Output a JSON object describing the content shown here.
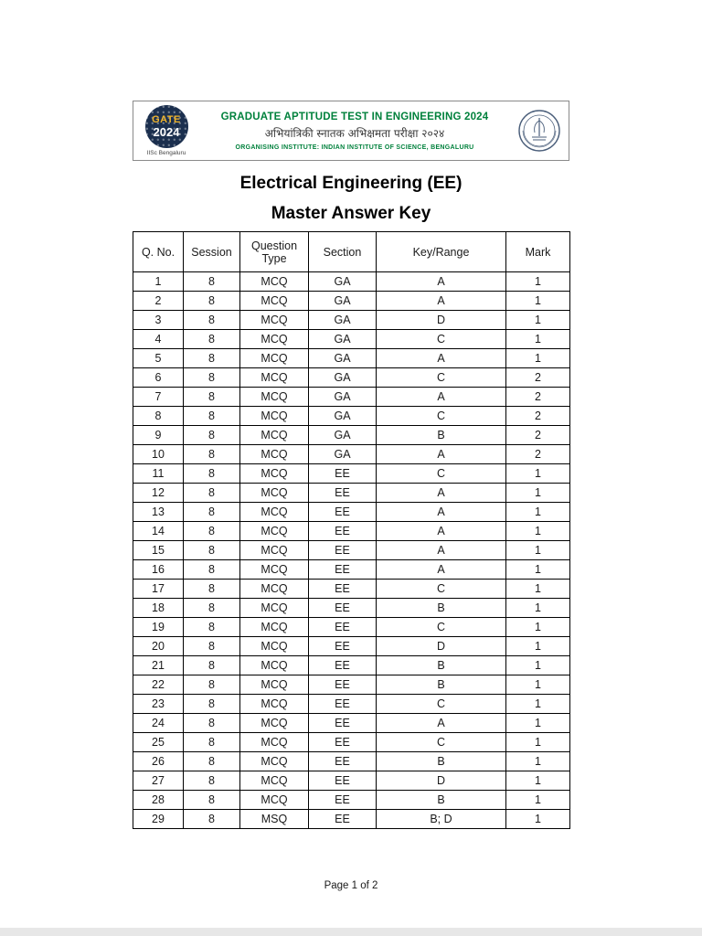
{
  "header": {
    "logo": {
      "gate": "GATE",
      "year": "2024",
      "sub": "IISc Bengaluru"
    },
    "line1": "GRADUATE APTITUDE TEST IN ENGINEERING 2024",
    "line2": "अभियांत्रिकी स्नातक अभिक्षमता परीक्षा २०२४",
    "line3": "ORGANISING INSTITUTE: INDIAN INSTITUTE OF SCIENCE, BENGALURU"
  },
  "document": {
    "title_line1": "Electrical Engineering (EE)",
    "title_line2": "Master Answer Key",
    "footer": "Page 1 of 2"
  },
  "colors": {
    "header_green": "#00813C",
    "logo_navy": "#1B2F4E",
    "logo_gold": "#F0B42B",
    "table_border": "#000000"
  },
  "table": {
    "headers": [
      "Q. No.",
      "Session",
      "Question Type",
      "Section",
      "Key/Range",
      "Mark"
    ],
    "rows": [
      [
        "1",
        "8",
        "MCQ",
        "GA",
        "A",
        "1"
      ],
      [
        "2",
        "8",
        "MCQ",
        "GA",
        "A",
        "1"
      ],
      [
        "3",
        "8",
        "MCQ",
        "GA",
        "D",
        "1"
      ],
      [
        "4",
        "8",
        "MCQ",
        "GA",
        "C",
        "1"
      ],
      [
        "5",
        "8",
        "MCQ",
        "GA",
        "A",
        "1"
      ],
      [
        "6",
        "8",
        "MCQ",
        "GA",
        "C",
        "2"
      ],
      [
        "7",
        "8",
        "MCQ",
        "GA",
        "A",
        "2"
      ],
      [
        "8",
        "8",
        "MCQ",
        "GA",
        "C",
        "2"
      ],
      [
        "9",
        "8",
        "MCQ",
        "GA",
        "B",
        "2"
      ],
      [
        "10",
        "8",
        "MCQ",
        "GA",
        "A",
        "2"
      ],
      [
        "11",
        "8",
        "MCQ",
        "EE",
        "C",
        "1"
      ],
      [
        "12",
        "8",
        "MCQ",
        "EE",
        "A",
        "1"
      ],
      [
        "13",
        "8",
        "MCQ",
        "EE",
        "A",
        "1"
      ],
      [
        "14",
        "8",
        "MCQ",
        "EE",
        "A",
        "1"
      ],
      [
        "15",
        "8",
        "MCQ",
        "EE",
        "A",
        "1"
      ],
      [
        "16",
        "8",
        "MCQ",
        "EE",
        "A",
        "1"
      ],
      [
        "17",
        "8",
        "MCQ",
        "EE",
        "C",
        "1"
      ],
      [
        "18",
        "8",
        "MCQ",
        "EE",
        "B",
        "1"
      ],
      [
        "19",
        "8",
        "MCQ",
        "EE",
        "C",
        "1"
      ],
      [
        "20",
        "8",
        "MCQ",
        "EE",
        "D",
        "1"
      ],
      [
        "21",
        "8",
        "MCQ",
        "EE",
        "B",
        "1"
      ],
      [
        "22",
        "8",
        "MCQ",
        "EE",
        "B",
        "1"
      ],
      [
        "23",
        "8",
        "MCQ",
        "EE",
        "C",
        "1"
      ],
      [
        "24",
        "8",
        "MCQ",
        "EE",
        "A",
        "1"
      ],
      [
        "25",
        "8",
        "MCQ",
        "EE",
        "C",
        "1"
      ],
      [
        "26",
        "8",
        "MCQ",
        "EE",
        "B",
        "1"
      ],
      [
        "27",
        "8",
        "MCQ",
        "EE",
        "D",
        "1"
      ],
      [
        "28",
        "8",
        "MCQ",
        "EE",
        "B",
        "1"
      ],
      [
        "29",
        "8",
        "MSQ",
        "EE",
        "B; D",
        "1"
      ]
    ]
  }
}
